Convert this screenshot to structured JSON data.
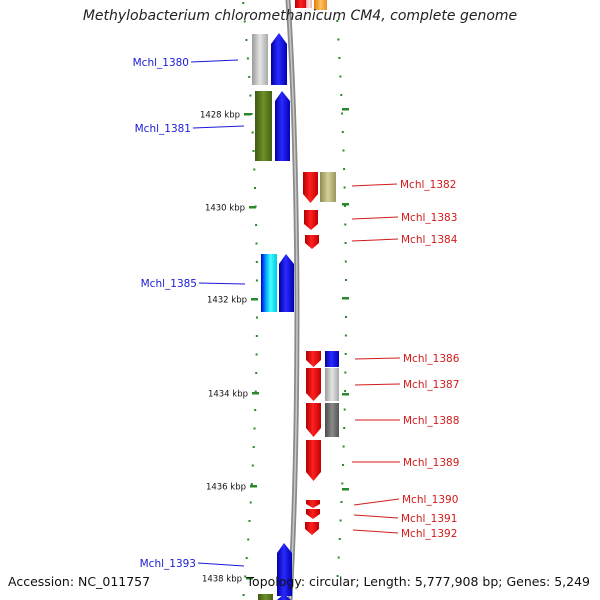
{
  "title": "Methylobacterium chloromethanicum CM4, complete genome",
  "footer": {
    "accession_label": "Accession:",
    "accession": "NC_011757",
    "topology_label": "Topology:",
    "topology": "circular",
    "length_label": "Length:",
    "length": "5,777,908 bp",
    "genes_label": "Genes:",
    "genes": "5,249"
  },
  "colors": {
    "left_label": "#1a1ad6",
    "right_label": "#d41a1a",
    "tick": "#2a8a2a",
    "backbone": "#8a8a8a"
  },
  "axis": {
    "ticks": [
      {
        "label": "1428 kbp"
      },
      {
        "label": "1430 kbp"
      },
      {
        "label": "1432 kbp"
      },
      {
        "label": "1434 kbp"
      },
      {
        "label": "1436 kbp"
      },
      {
        "label": "1438 kbp"
      }
    ]
  },
  "genes_left": [
    {
      "label": "Mchl_1380",
      "color": "#1a1ad6"
    },
    {
      "label": "Mchl_1381",
      "color": "#1a1ad6"
    },
    {
      "label": "Mchl_1385",
      "color": "#1a1ad6"
    },
    {
      "label": "Mchl_1393",
      "color": "#1a1ad6"
    }
  ],
  "genes_right": [
    {
      "label": "Mchl_1382",
      "color": "#d41a1a"
    },
    {
      "label": "Mchl_1383",
      "color": "#d41a1a"
    },
    {
      "label": "Mchl_1384",
      "color": "#d41a1a"
    },
    {
      "label": "Mchl_1386",
      "color": "#d41a1a"
    },
    {
      "label": "Mchl_1387",
      "color": "#d41a1a"
    },
    {
      "label": "Mchl_1388",
      "color": "#d41a1a"
    },
    {
      "label": "Mchl_1389",
      "color": "#d41a1a"
    },
    {
      "label": "Mchl_1390",
      "color": "#d41a1a"
    },
    {
      "label": "Mchl_1391",
      "color": "#d41a1a"
    },
    {
      "label": "Mchl_1392",
      "color": "#d41a1a"
    }
  ]
}
